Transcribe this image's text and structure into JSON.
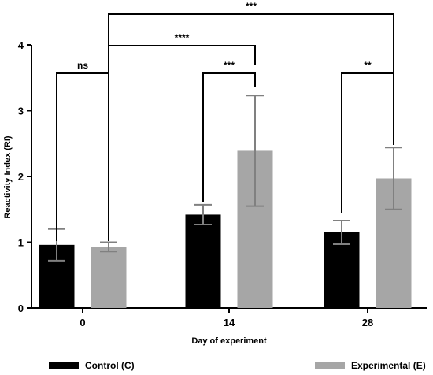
{
  "chart_data": {
    "type": "bar",
    "xlabel": "Day of experiment",
    "ylabel": "Reactivity Index (RI)",
    "ylim": [
      0,
      4
    ],
    "yticks": [
      0,
      1,
      2,
      3,
      4
    ],
    "categories": [
      "0",
      "14",
      "28"
    ],
    "series": [
      {
        "name": "Control (C)",
        "color": "#000000",
        "values": [
          0.96,
          1.42,
          1.15
        ],
        "error": [
          0.24,
          0.15,
          0.18
        ]
      },
      {
        "name": "Experimental (E)",
        "color": "#a6a6a6",
        "values": [
          0.93,
          2.39,
          1.97
        ],
        "error": [
          0.07,
          0.84,
          0.47
        ]
      }
    ],
    "significance": [
      {
        "label": "ns"
      },
      {
        "label": "***"
      },
      {
        "label": "**"
      },
      {
        "label": "****"
      },
      {
        "label": "***"
      }
    ],
    "grid": false,
    "legend_position": "bottom"
  }
}
